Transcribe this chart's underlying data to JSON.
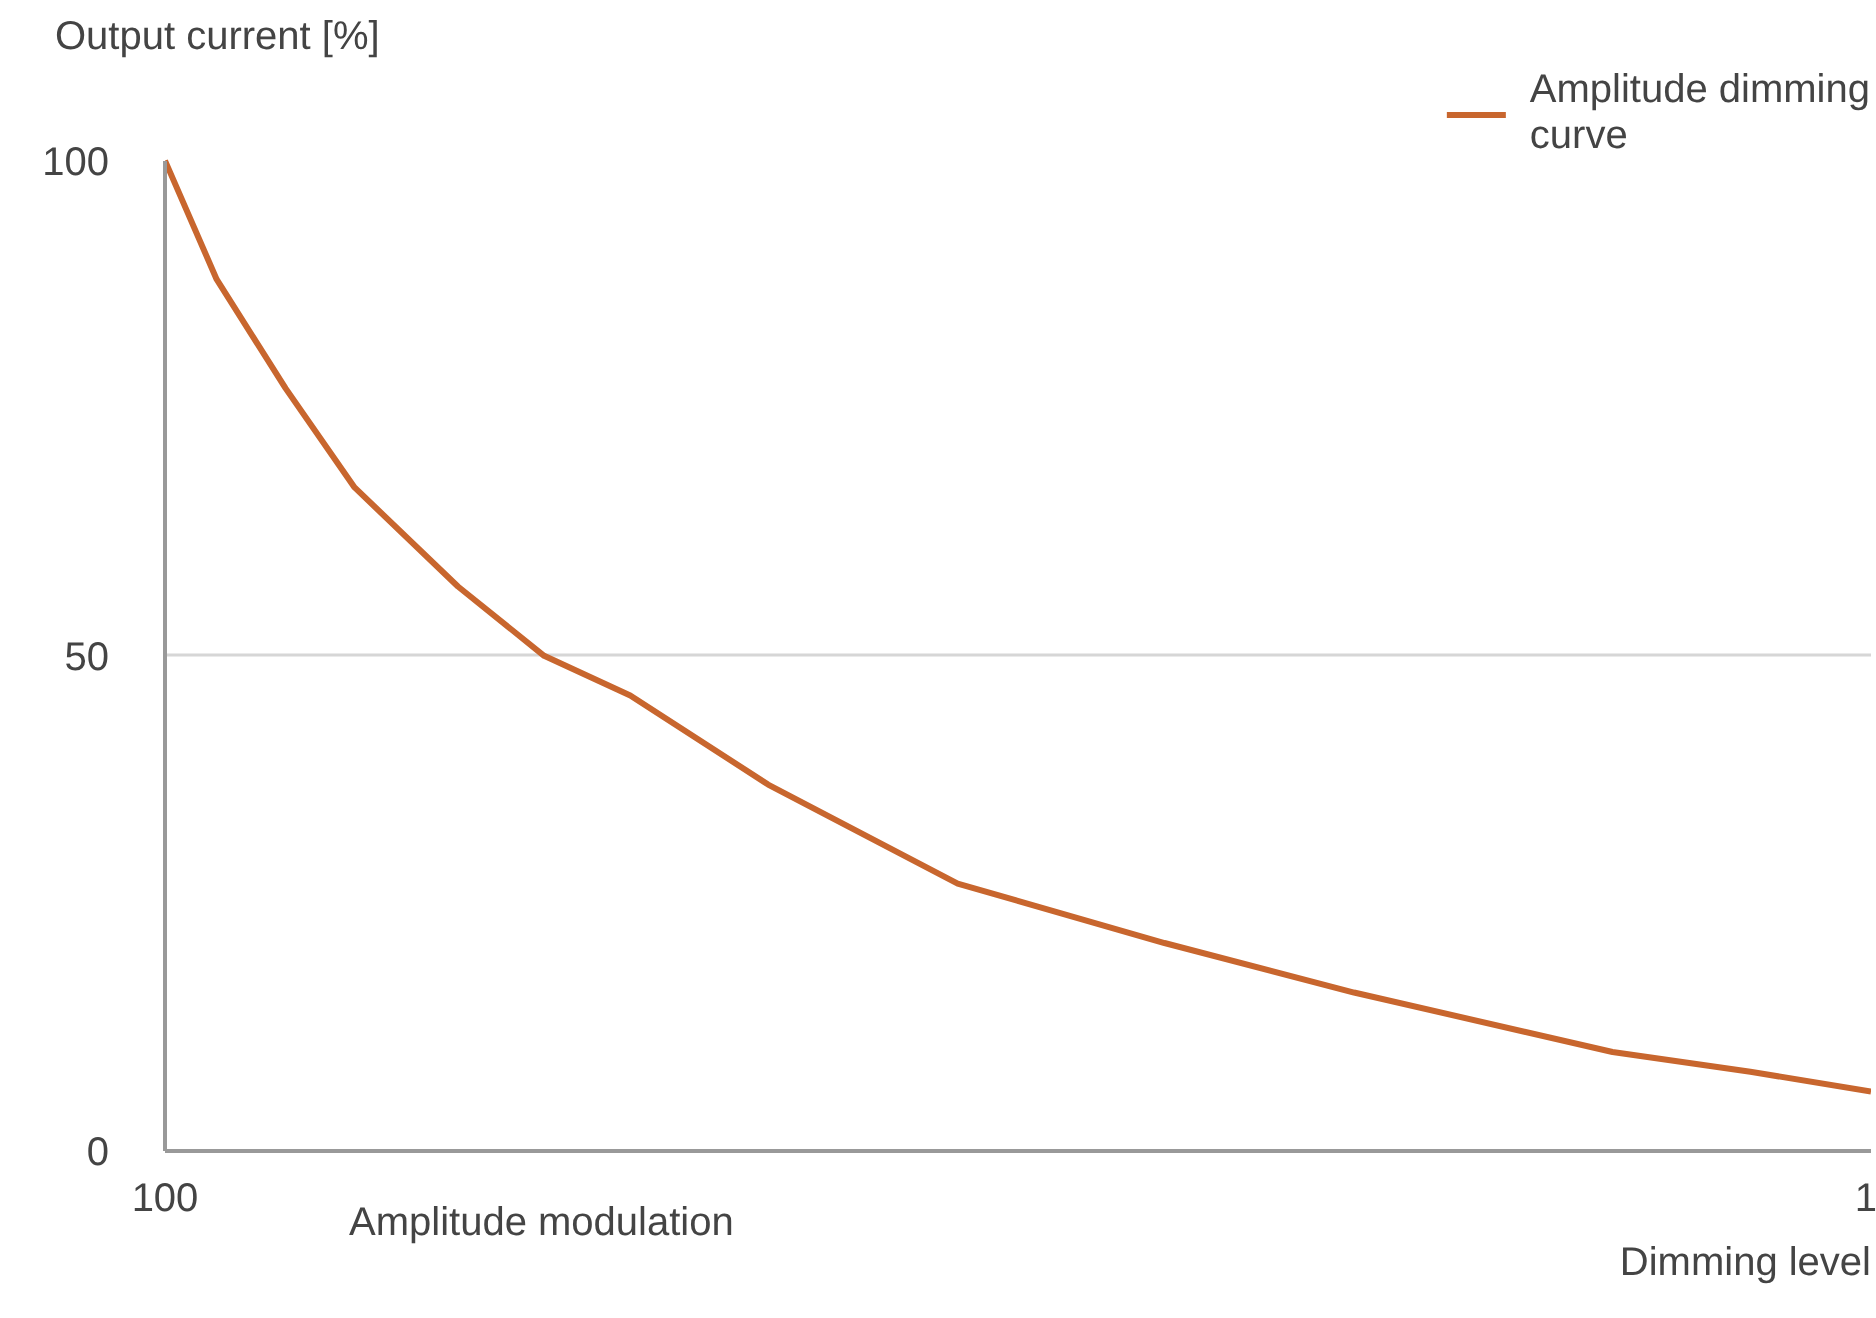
{
  "chart_data": {
    "type": "line",
    "xlabel": "Dimming level",
    "ylabel": "Output current [%]",
    "annotations": [
      "Amplitude modulation"
    ],
    "x": [
      100,
      97,
      93,
      89,
      83,
      78,
      73,
      65,
      54,
      42,
      31,
      16,
      8,
      1
    ],
    "series": [
      {
        "name": "Amplitude dimming curve",
        "color": "#c8662e",
        "values": [
          100,
          88,
          77,
          67,
          57,
          50,
          46,
          37,
          27,
          21,
          16,
          10,
          8,
          6
        ]
      }
    ],
    "xlim": [
      100,
      1
    ],
    "xticks": [
      100,
      1
    ],
    "ylim": [
      0,
      100
    ],
    "yticks": [
      0,
      50,
      100
    ],
    "grid": "y",
    "legend": "top right",
    "marker": "none",
    "line_style": "solid"
  }
}
